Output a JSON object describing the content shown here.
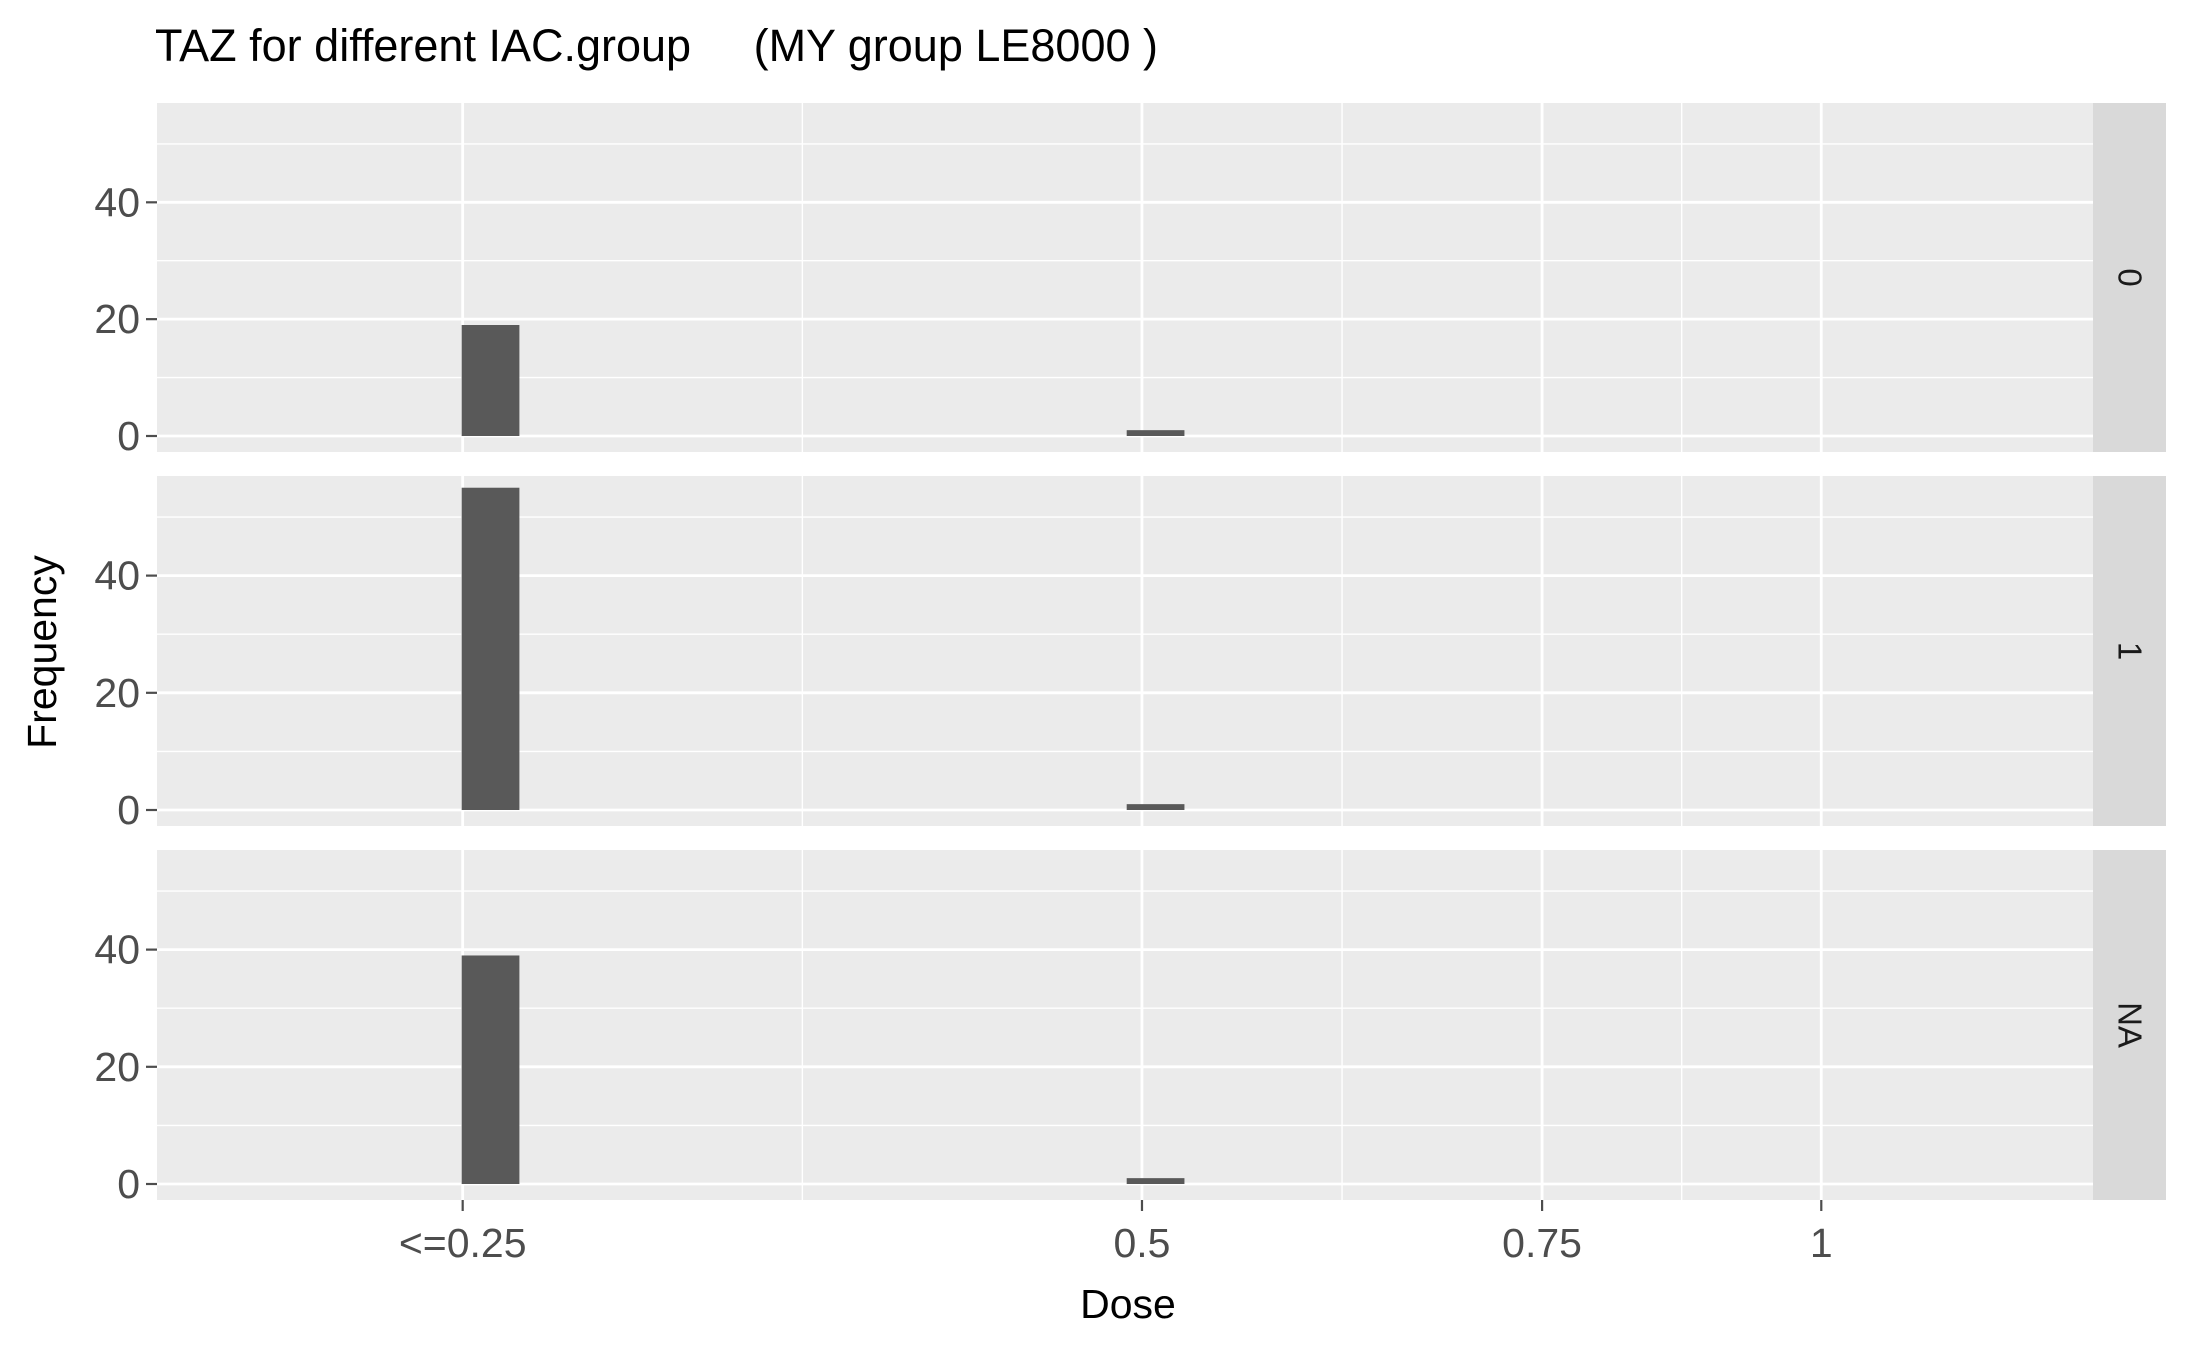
{
  "chart_data": {
    "type": "bar",
    "title": "TAZ for different IAC.group     (MY group LE8000 )",
    "xlabel": "Dose",
    "ylabel": "Frequency",
    "x_ticks": [
      {
        "label": "<=0.25",
        "pos": 0
      },
      {
        "label": "0.5",
        "pos": 2
      },
      {
        "label": "0.75",
        "pos": 3.178
      },
      {
        "label": "1",
        "pos": 4
      }
    ],
    "x_range": [
      -0.9,
      4.8
    ],
    "ylim": [
      0,
      57
    ],
    "y_ticks": [
      0,
      20,
      40
    ],
    "bar_width": 0.17,
    "facets": [
      {
        "label": "0",
        "bars": [
          {
            "x": 0.082,
            "value": 19
          },
          {
            "x": 2.04,
            "value": 1
          }
        ]
      },
      {
        "label": "1",
        "bars": [
          {
            "x": 0.082,
            "value": 55
          },
          {
            "x": 2.04,
            "value": 1
          }
        ]
      },
      {
        "label": "NA",
        "bars": [
          {
            "x": 0.082,
            "value": 39
          },
          {
            "x": 2.04,
            "value": 1
          }
        ]
      }
    ],
    "colors": {
      "panel": "#ebebeb",
      "strip": "#d9d9d9",
      "grid": "#ffffff",
      "bar": "#595959",
      "tick": "#4d4d4d"
    }
  }
}
